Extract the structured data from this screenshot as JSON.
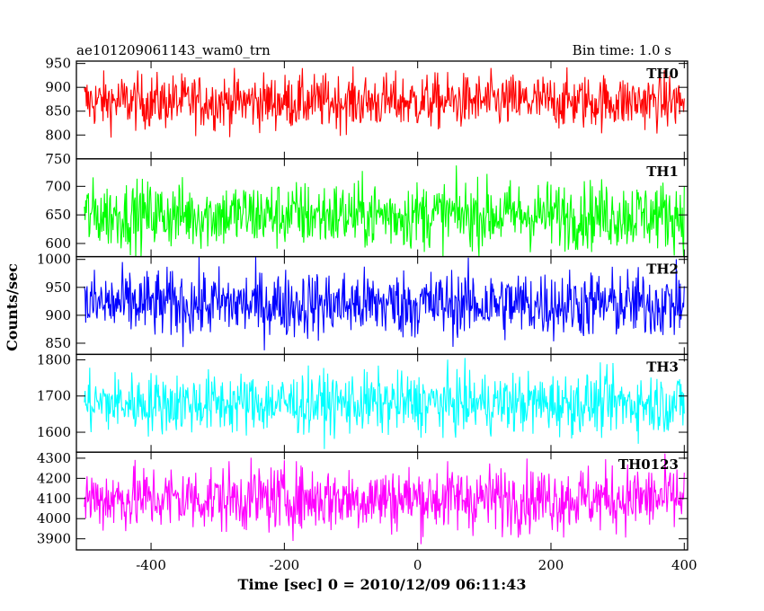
{
  "header": {
    "title": "ae101209061143_wam0_trn",
    "bin_time": "Bin time: 1.0 s"
  },
  "chart_data": {
    "type": "line",
    "xlabel": "Time [sec] 0 = 2010/12/09 06:11:43",
    "ylabel": "Counts/sec",
    "xlim": [
      -512,
      405
    ],
    "x_ticks": [
      -400,
      -200,
      0,
      200,
      400
    ],
    "x_range_data": [
      -500,
      400
    ],
    "bin_time_s": 1.0,
    "grid": false,
    "legend": "none",
    "panels": [
      {
        "name": "TH0",
        "color": "#ff0000",
        "ylim": [
          750,
          955
        ],
        "y_ticks": [
          800,
          850,
          900,
          950
        ],
        "y_tick_labels": [
          "800",
          "850",
          "900",
          "950"
        ],
        "extra_bottom_label": "750",
        "mean": 870,
        "spread_low": 795,
        "spread_high": 945
      },
      {
        "name": "TH1",
        "color": "#00ff00",
        "ylim": [
          577,
          748
        ],
        "y_ticks": [
          600,
          650,
          700
        ],
        "y_tick_labels": [
          "600",
          "650",
          "700"
        ],
        "mean": 650,
        "spread_low": 585,
        "spread_high": 740
      },
      {
        "name": "TH2",
        "color": "#0000ff",
        "ylim": [
          830,
          1005
        ],
        "y_ticks": [
          850,
          900,
          950,
          1000
        ],
        "y_tick_labels": [
          "850",
          "900",
          "950",
          "1000"
        ],
        "mean": 920,
        "spread_low": 840,
        "spread_high": 1000
      },
      {
        "name": "TH3",
        "color": "#00ffff",
        "ylim": [
          1545,
          1815
        ],
        "y_ticks": [
          1600,
          1700,
          1800
        ],
        "y_tick_labels": [
          "1600",
          "1700",
          "1800"
        ],
        "mean": 1680,
        "spread_low": 1570,
        "spread_high": 1790
      },
      {
        "name": "TH0123",
        "color": "#ff00ff",
        "ylim": [
          3845,
          4330
        ],
        "y_ticks": [
          3900,
          4000,
          4100,
          4200,
          4300
        ],
        "y_tick_labels": [
          "3900",
          "4000",
          "4100",
          "4200",
          "4300"
        ],
        "mean": 4100,
        "spread_low": 3880,
        "spread_high": 4310
      }
    ]
  }
}
